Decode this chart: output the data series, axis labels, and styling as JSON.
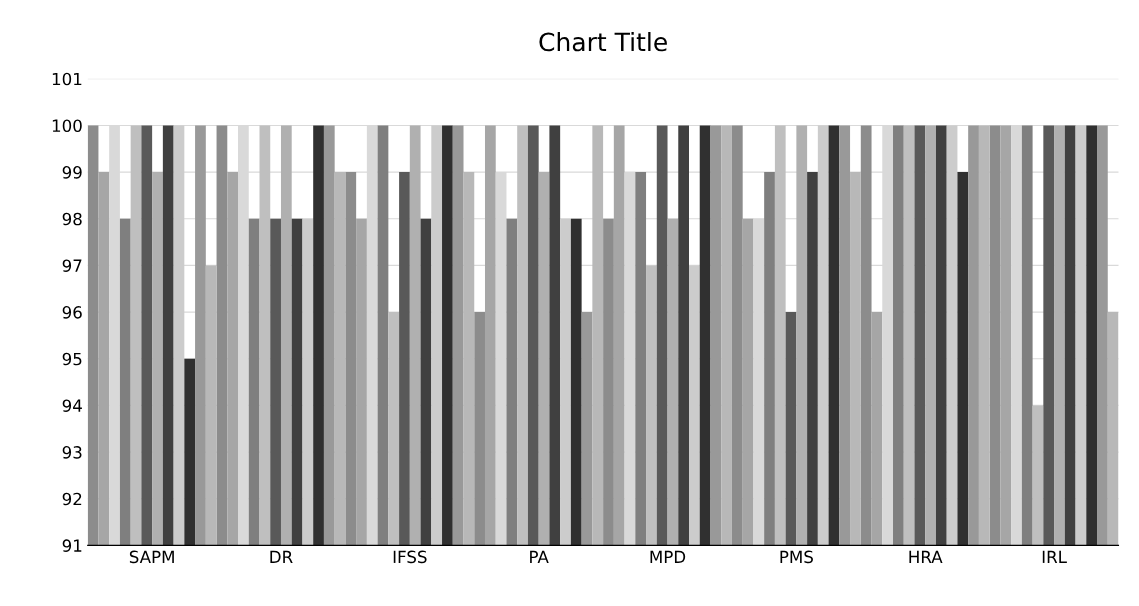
{
  "chart_data": {
    "type": "bar",
    "title": "Chart Title",
    "categories": [
      "SAPM",
      "DR",
      "IFSS",
      "PA",
      "MPD",
      "PMS",
      "HRA",
      "IRL"
    ],
    "series": [
      {
        "color": "#8c8c8c",
        "values": [
          100,
          100,
          99,
          96,
          98,
          100,
          100,
          100
        ]
      },
      {
        "color": "#a6a6a6",
        "values": [
          99,
          99,
          98,
          100,
          100,
          98,
          96,
          100
        ]
      },
      {
        "color": "#d9d9d9",
        "values": [
          100,
          100,
          100,
          99,
          99,
          98,
          100,
          100
        ]
      },
      {
        "color": "#7f7f7f",
        "values": [
          98,
          98,
          100,
          98,
          99,
          99,
          100,
          100
        ]
      },
      {
        "color": "#bfbfbf",
        "values": [
          100,
          100,
          96,
          100,
          97,
          100,
          100,
          94
        ]
      },
      {
        "color": "#595959",
        "values": [
          100,
          98,
          99,
          100,
          100,
          96,
          100,
          100
        ]
      },
      {
        "color": "#b0b0b0",
        "values": [
          99,
          100,
          100,
          99,
          98,
          100,
          100,
          100
        ]
      },
      {
        "color": "#404040",
        "values": [
          100,
          98,
          98,
          100,
          100,
          99,
          100,
          100
        ]
      },
      {
        "color": "#cccccc",
        "values": [
          100,
          98,
          100,
          98,
          97,
          100,
          100,
          100
        ]
      },
      {
        "color": "#303030",
        "values": [
          95,
          100,
          100,
          98,
          100,
          100,
          99,
          100
        ]
      },
      {
        "color": "#999999",
        "values": [
          100,
          100,
          100,
          96,
          100,
          100,
          100,
          100
        ]
      },
      {
        "color": "#b8b8b8",
        "values": [
          97,
          99,
          99,
          100,
          100,
          99,
          100,
          96
        ]
      }
    ],
    "ylim": [
      91,
      101
    ],
    "yticks": [
      91,
      92,
      93,
      94,
      95,
      96,
      97,
      98,
      99,
      100,
      101
    ],
    "grid": "y"
  }
}
